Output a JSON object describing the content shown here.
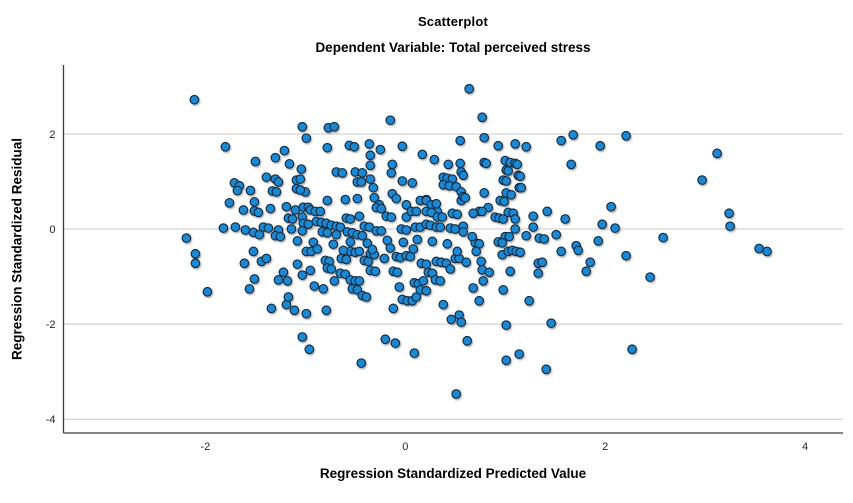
{
  "chart_data": {
    "type": "scatter",
    "title": "Scatterplot",
    "subtitle": "Dependent Variable: Total perceived stress",
    "xlabel": "Regression Standardized Predicted Value",
    "ylabel": "Regression Standardized Residual",
    "xlim": [
      -3.42,
      4.38
    ],
    "ylim": [
      -4.29,
      3.45
    ],
    "x_ticks": [
      -2,
      0,
      2,
      4
    ],
    "y_ticks": [
      2,
      0,
      -2,
      -4
    ],
    "grid": "horizontal-only",
    "legend": "none",
    "colors": {
      "marker_fill": "#1E88D2",
      "marker_stroke": "#102a43",
      "marker_shadow": "#b0b0b0",
      "grid_color": "#c8c8c8",
      "axis_color": "#3c3c3c",
      "background": "#ffffff"
    },
    "marker_radius": 4.3,
    "points": [
      [
        -2.11,
        2.72
      ],
      [
        -1.8,
        1.73
      ],
      [
        -1.5,
        1.42
      ],
      [
        -1.71,
        0.97
      ],
      [
        -1.66,
        0.91
      ],
      [
        -1.68,
        0.81
      ],
      [
        -1.55,
        0.81
      ],
      [
        -1.76,
        0.55
      ],
      [
        -1.51,
        0.57
      ],
      [
        -1.62,
        0.4
      ],
      [
        -1.51,
        0.38
      ],
      [
        -1.47,
        0.35
      ],
      [
        -1.82,
        0.02
      ],
      [
        -1.7,
        0.04
      ],
      [
        -1.6,
        -0.02
      ],
      [
        -1.52,
        -0.07
      ],
      [
        -1.46,
        -0.12
      ],
      [
        -2.19,
        -0.19
      ],
      [
        -1.03,
        2.15
      ],
      [
        -0.77,
        2.13
      ],
      [
        -0.71,
        2.15
      ],
      [
        -0.15,
        2.29
      ],
      [
        -0.99,
        1.91
      ],
      [
        -0.78,
        1.71
      ],
      [
        -0.56,
        1.76
      ],
      [
        -0.51,
        1.73
      ],
      [
        -0.36,
        1.79
      ],
      [
        -0.25,
        1.67
      ],
      [
        -0.03,
        1.74
      ],
      [
        -1.21,
        1.65
      ],
      [
        -1.3,
        1.5
      ],
      [
        -1.16,
        1.37
      ],
      [
        -0.35,
        1.55
      ],
      [
        0.17,
        1.57
      ],
      [
        0.29,
        1.46
      ],
      [
        0.55,
        1.86
      ],
      [
        0.43,
        1.36
      ],
      [
        0.55,
        1.38
      ],
      [
        -0.35,
        1.34
      ],
      [
        -0.13,
        1.36
      ],
      [
        -1.04,
        1.26
      ],
      [
        -1,
        0.78
      ],
      [
        -1.09,
        1.03
      ],
      [
        -1.05,
        1.05
      ],
      [
        -1.09,
        0.85
      ],
      [
        -1.05,
        0.82
      ],
      [
        -1.39,
        1.09
      ],
      [
        -1.3,
        1.05
      ],
      [
        -1.27,
        0.99
      ],
      [
        -1.33,
        0.8
      ],
      [
        -1.29,
        0.78
      ],
      [
        -0.69,
        1.2
      ],
      [
        -0.63,
        1.18
      ],
      [
        -0.5,
        1.2
      ],
      [
        -0.43,
        1.18
      ],
      [
        -0.48,
        0.99
      ],
      [
        -0.44,
        0.99
      ],
      [
        -0.35,
        1.05
      ],
      [
        -0.32,
        0.87
      ],
      [
        -0.14,
        1.18
      ],
      [
        -0.03,
        1.01
      ],
      [
        0.07,
        0.97
      ],
      [
        -0.13,
        0.74
      ],
      [
        0.15,
        0.6
      ],
      [
        0.21,
        0.62
      ],
      [
        0.29,
        0.47
      ],
      [
        0.32,
        0.37
      ],
      [
        0.38,
        1.09
      ],
      [
        0.42,
        1.07
      ],
      [
        0.47,
        1.05
      ],
      [
        0.38,
        0.93
      ],
      [
        0.44,
        0.91
      ],
      [
        0.51,
        0.89
      ],
      [
        0.56,
        1.2
      ],
      [
        0.56,
        0.78
      ],
      [
        -0.78,
        0.6
      ],
      [
        -0.6,
        0.62
      ],
      [
        -0.48,
        0.64
      ],
      [
        -0.31,
        0.66
      ],
      [
        -0.26,
        0.51
      ],
      [
        -0.09,
        0.64
      ],
      [
        0.01,
        0.51
      ],
      [
        0.21,
        0.6
      ],
      [
        0.26,
        0.51
      ],
      [
        0.31,
        0.53
      ],
      [
        -1.19,
        0.47
      ],
      [
        -1.1,
        0.4
      ],
      [
        -1.02,
        0.46
      ],
      [
        -0.97,
        0.46
      ],
      [
        -1.35,
        0.43
      ],
      [
        -1.17,
        0.23
      ],
      [
        -1.13,
        0.21
      ],
      [
        -1.03,
        0.25
      ],
      [
        -0.95,
        0.4
      ],
      [
        -0.9,
        0.37
      ],
      [
        -0.85,
        0.37
      ],
      [
        -0.89,
        0.16
      ],
      [
        -0.84,
        0.14
      ],
      [
        -0.79,
        0.12
      ],
      [
        -0.74,
        0.08
      ],
      [
        -0.69,
        0.06
      ],
      [
        -0.65,
        0.04
      ],
      [
        -0.59,
        0.23
      ],
      [
        -0.55,
        0.21
      ],
      [
        -0.46,
        0.27
      ],
      [
        -0.41,
        0.06
      ],
      [
        -0.36,
        0.04
      ],
      [
        -0.29,
        0.45
      ],
      [
        -0.24,
        0.43
      ],
      [
        -0.19,
        0.27
      ],
      [
        -0.14,
        0.25
      ],
      [
        0.01,
        0.25
      ],
      [
        0.06,
        0.37
      ],
      [
        0.11,
        0.37
      ],
      [
        0.21,
        0.37
      ],
      [
        0.26,
        0.35
      ],
      [
        0.32,
        0.25
      ],
      [
        0.37,
        0.25
      ],
      [
        0.47,
        0.33
      ],
      [
        0.52,
        0.31
      ],
      [
        0.56,
        0.6
      ],
      [
        -1.42,
        0.04
      ],
      [
        -1.37,
        0.02
      ],
      [
        -1.27,
        -0.02
      ],
      [
        -1.02,
        0.12
      ],
      [
        -0.97,
        0.1
      ],
      [
        -1.14,
        0
      ],
      [
        -1.03,
        -0.04
      ],
      [
        -0.83,
        -0.06
      ],
      [
        -0.78,
        -0.08
      ],
      [
        -0.69,
        -0.12
      ],
      [
        -0.58,
        -0.06
      ],
      [
        -0.53,
        -0.08
      ],
      [
        -0.48,
        -0.12
      ],
      [
        -0.43,
        -0.14
      ],
      [
        -0.29,
        -0.04
      ],
      [
        -0.24,
        -0.04
      ],
      [
        -0.04,
        0
      ],
      [
        0.01,
        -0.02
      ],
      [
        0.1,
        0.04
      ],
      [
        0.15,
        0.04
      ],
      [
        0.21,
        0.1
      ],
      [
        0.25,
        0.08
      ],
      [
        0.31,
        0.04
      ],
      [
        0.35,
        0.04
      ],
      [
        0.45,
        0.02
      ],
      [
        0.5,
        0
      ],
      [
        -1.3,
        -0.14
      ],
      [
        -1.25,
        -0.16
      ],
      [
        0.64,
        2.95
      ],
      [
        0.77,
        2.35
      ],
      [
        0.79,
        1.92
      ],
      [
        1.68,
        1.98
      ],
      [
        2.21,
        1.96
      ],
      [
        1.56,
        1.86
      ],
      [
        0.93,
        1.75
      ],
      [
        1.1,
        1.79
      ],
      [
        1.21,
        1.73
      ],
      [
        1.95,
        1.75
      ],
      [
        1.66,
        1.36
      ],
      [
        0.79,
        1.4
      ],
      [
        0.81,
        1.38
      ],
      [
        1,
        1.44
      ],
      [
        1.05,
        1.4
      ],
      [
        1.1,
        1.38
      ],
      [
        1.12,
        1.36
      ],
      [
        1.01,
        1.24
      ],
      [
        1.03,
        1.22
      ],
      [
        0.98,
        1.03
      ],
      [
        1.01,
        1.01
      ],
      [
        1.13,
        1.13
      ],
      [
        1.15,
        1.11
      ],
      [
        1.14,
        0.87
      ],
      [
        1.16,
        0.87
      ],
      [
        0.58,
        1.13
      ],
      [
        0.58,
        0.68
      ],
      [
        0.6,
        0.66
      ],
      [
        0.79,
        0.76
      ],
      [
        0.83,
        0.45
      ],
      [
        1.01,
        0.76
      ],
      [
        1.06,
        0.72
      ],
      [
        0.95,
        0.6
      ],
      [
        0.99,
        0.58
      ],
      [
        1.03,
        0.35
      ],
      [
        1.08,
        0.33
      ],
      [
        0.74,
        0.37
      ],
      [
        0.77,
        0.37
      ],
      [
        0.68,
        0.33
      ],
      [
        0.9,
        0.25
      ],
      [
        0.94,
        0.23
      ],
      [
        0.98,
        0.21
      ],
      [
        1.1,
        0.21
      ],
      [
        1.28,
        0.27
      ],
      [
        1.42,
        0.37
      ],
      [
        1.6,
        0.21
      ],
      [
        2.06,
        0.47
      ],
      [
        1.97,
        0.1
      ],
      [
        2.1,
        0.02
      ],
      [
        1.28,
        0.04
      ],
      [
        1.34,
        -0.19
      ],
      [
        1.39,
        -0.21
      ],
      [
        1.51,
        -0.12
      ],
      [
        1.21,
        -0.14
      ],
      [
        1.1,
        0
      ],
      [
        1,
        -0.16
      ],
      [
        1.04,
        -0.16
      ],
      [
        0.7,
        -0.29
      ],
      [
        0.74,
        -0.31
      ],
      [
        0.93,
        -0.27
      ],
      [
        0.97,
        -0.29
      ],
      [
        0.67,
        -0.16
      ],
      [
        0.58,
        0.06
      ],
      [
        0.58,
        -0.06
      ],
      [
        1.71,
        -0.35
      ],
      [
        1.93,
        -0.25
      ],
      [
        3.12,
        1.59
      ],
      [
        2.97,
        1.03
      ],
      [
        3.24,
        0.33
      ],
      [
        3.25,
        0.06
      ],
      [
        2.58,
        -0.18
      ],
      [
        3.54,
        -0.41
      ],
      [
        3.62,
        -0.47
      ],
      [
        -2.1,
        -0.52
      ],
      [
        -2.1,
        -0.72
      ],
      [
        -1.61,
        -0.72
      ],
      [
        -1.44,
        -0.68
      ],
      [
        -1.52,
        -0.47
      ],
      [
        -1.51,
        -1.05
      ],
      [
        -1.56,
        -1.26
      ],
      [
        -1.98,
        -1.32
      ],
      [
        -1.39,
        -0.62
      ],
      [
        -1.27,
        -1.07
      ],
      [
        -1.22,
        -0.91
      ],
      [
        -1.18,
        -1.09
      ],
      [
        -1.08,
        -0.74
      ],
      [
        -1.03,
        -0.97
      ],
      [
        -0.95,
        -0.87
      ],
      [
        -0.91,
        -1.2
      ],
      [
        -0.82,
        -1.26
      ],
      [
        -0.99,
        -0.47
      ],
      [
        -0.94,
        -0.47
      ],
      [
        -0.8,
        -0.66
      ],
      [
        -0.76,
        -0.68
      ],
      [
        -0.78,
        -0.82
      ],
      [
        -0.74,
        -0.84
      ],
      [
        -0.71,
        -1.09
      ],
      [
        -0.65,
        -0.93
      ],
      [
        -0.6,
        -0.95
      ],
      [
        -0.64,
        -0.62
      ],
      [
        -0.59,
        -0.64
      ],
      [
        -0.55,
        -0.47
      ],
      [
        -0.5,
        -0.49
      ],
      [
        -0.46,
        -0.47
      ],
      [
        -0.41,
        -0.66
      ],
      [
        -0.37,
        -0.68
      ],
      [
        -0.55,
        -1.07
      ],
      [
        -0.5,
        -1.09
      ],
      [
        -0.46,
        -1.09
      ],
      [
        -0.53,
        -1.26
      ],
      [
        -0.48,
        -1.28
      ],
      [
        -0.43,
        -1.4
      ],
      [
        -0.39,
        -1.43
      ],
      [
        -0.35,
        -0.87
      ],
      [
        -0.3,
        -0.89
      ],
      [
        -0.35,
        -0.52
      ],
      [
        -0.31,
        -0.54
      ],
      [
        -0.21,
        -0.62
      ],
      [
        -0.09,
        -0.58
      ],
      [
        -0.05,
        -0.6
      ],
      [
        0.01,
        -0.56
      ],
      [
        0.05,
        -0.58
      ],
      [
        -0.12,
        -0.89
      ],
      [
        -0.08,
        -0.91
      ],
      [
        -0.06,
        -1.22
      ],
      [
        -0.12,
        -1.67
      ],
      [
        -0.03,
        -1.48
      ],
      [
        0.02,
        -1.51
      ],
      [
        0.09,
        -1.13
      ],
      [
        0.13,
        -1.15
      ],
      [
        0.07,
        -1.51
      ],
      [
        0.11,
        -1.43
      ],
      [
        0.15,
        -1.28
      ],
      [
        0.21,
        -1.3
      ],
      [
        0.18,
        -1.09
      ],
      [
        0.23,
        -0.91
      ],
      [
        0.27,
        -0.93
      ],
      [
        0.16,
        -0.72
      ],
      [
        0.21,
        -0.74
      ],
      [
        0.31,
        -0.68
      ],
      [
        0.36,
        -0.7
      ],
      [
        0.41,
        -0.72
      ],
      [
        0.3,
        -1.07
      ],
      [
        0.35,
        -1.09
      ],
      [
        0.45,
        -0.84
      ],
      [
        0.5,
        -0.62
      ],
      [
        0.54,
        -0.62
      ],
      [
        0.52,
        -0.47
      ],
      [
        0.38,
        -1.59
      ],
      [
        0.54,
        -1.81
      ],
      [
        0.46,
        -1.9
      ],
      [
        -1.11,
        -1.71
      ],
      [
        -0.99,
        -1.78
      ],
      [
        -1.34,
        -1.67
      ],
      [
        -1.19,
        -1.59
      ],
      [
        -1.17,
        -1.43
      ],
      [
        -0.79,
        -1.71
      ],
      [
        -1.03,
        -2.27
      ],
      [
        -0.96,
        -2.53
      ],
      [
        -0.44,
        -2.82
      ],
      [
        -0.2,
        -2.32
      ],
      [
        -0.1,
        -2.4
      ],
      [
        0.09,
        -2.61
      ],
      [
        0.51,
        -3.47
      ],
      [
        0.56,
        -1.96
      ],
      [
        0.61,
        -0.7
      ],
      [
        0.71,
        -0.47
      ],
      [
        0.76,
        -0.68
      ],
      [
        0.77,
        -0.86
      ],
      [
        0.84,
        -0.91
      ],
      [
        0.78,
        -1.09
      ],
      [
        0.68,
        -1.24
      ],
      [
        0.74,
        -1.51
      ],
      [
        0.97,
        -0.54
      ],
      [
        1.03,
        -0.47
      ],
      [
        1.07,
        -0.45
      ],
      [
        1.11,
        -0.47
      ],
      [
        1.15,
        -0.49
      ],
      [
        1.05,
        -0.89
      ],
      [
        0.98,
        -1.28
      ],
      [
        1.33,
        -0.72
      ],
      [
        1.37,
        -0.7
      ],
      [
        1.33,
        -0.93
      ],
      [
        1.24,
        -1.51
      ],
      [
        1.56,
        -0.47
      ],
      [
        1.73,
        -0.45
      ],
      [
        1.85,
        -0.7
      ],
      [
        1.81,
        -0.89
      ],
      [
        2.21,
        -0.56
      ],
      [
        2.45,
        -1.01
      ],
      [
        1.01,
        -2.02
      ],
      [
        1.46,
        -1.98
      ],
      [
        0.62,
        -2.35
      ],
      [
        1.14,
        -2.63
      ],
      [
        1.01,
        -2.76
      ],
      [
        1.41,
        -2.95
      ],
      [
        2.27,
        -2.53
      ],
      [
        -1.08,
        -0.25
      ],
      [
        -0.92,
        -0.28
      ],
      [
        -0.72,
        -0.32
      ],
      [
        -0.55,
        -0.27
      ],
      [
        -0.38,
        -0.3
      ],
      [
        -0.18,
        -0.24
      ],
      [
        -0.02,
        -0.28
      ],
      [
        0.12,
        -0.22
      ],
      [
        0.27,
        -0.26
      ],
      [
        0.42,
        -0.31
      ],
      [
        -0.88,
        -0.42
      ],
      [
        -0.62,
        -0.45
      ],
      [
        -0.33,
        -0.43
      ],
      [
        -0.15,
        -0.4
      ],
      [
        0.08,
        -0.42
      ]
    ]
  }
}
